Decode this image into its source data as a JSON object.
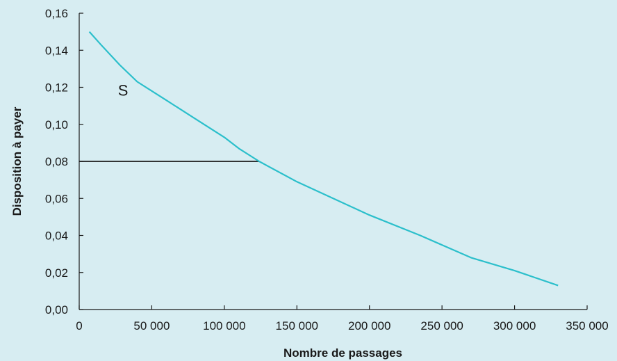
{
  "colors": {
    "background": "#d7edf2",
    "curve": "#2bbfcb",
    "axis": "#1a1a1a",
    "price_line": "#1a1a1a"
  },
  "chart_data": {
    "type": "line",
    "title": "",
    "xlabel": "Nombre de passages",
    "ylabel": "Disposition à payer",
    "xlim": [
      0,
      350000
    ],
    "ylim": [
      0,
      0.16
    ],
    "x_ticks": [
      0,
      50000,
      100000,
      150000,
      200000,
      250000,
      300000,
      350000
    ],
    "x_tick_labels": [
      "0",
      "50 000",
      "100 000",
      "150 000",
      "200 000",
      "250 000",
      "300 000",
      "350 000"
    ],
    "y_ticks": [
      0,
      0.02,
      0.04,
      0.06,
      0.08,
      0.1,
      0.12,
      0.14,
      0.16
    ],
    "y_tick_labels": [
      "0,00",
      "0,02",
      "0,04",
      "0,06",
      "0,08",
      "0,10",
      "0,12",
      "0,14",
      "0,16"
    ],
    "grid": false,
    "series": [
      {
        "x": [
          7000,
          15000,
          28000,
          40000,
          60000,
          80000,
          100000,
          110000,
          124000,
          150000,
          175000,
          200000,
          235000,
          270000,
          300000,
          330000
        ],
        "y": [
          0.15,
          0.143,
          0.132,
          0.123,
          0.113,
          0.103,
          0.093,
          0.087,
          0.08,
          0.069,
          0.06,
          0.051,
          0.04,
          0.028,
          0.021,
          0.013
        ]
      }
    ],
    "reference_line": {
      "y": 0.08,
      "x_start": 0,
      "x_end": 124000
    },
    "annotations": [
      {
        "text": "S",
        "x": 20000,
        "y": 0.117
      }
    ]
  }
}
